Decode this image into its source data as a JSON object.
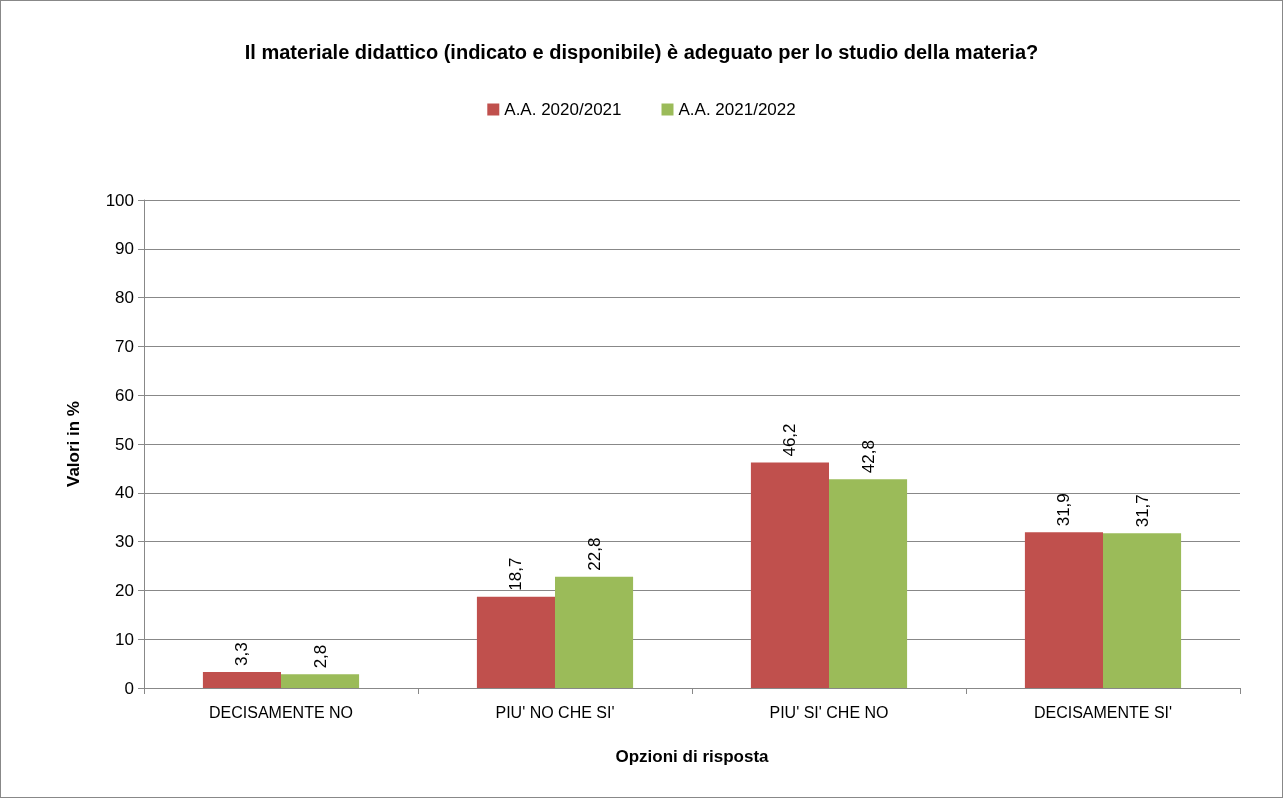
{
  "chart_data": {
    "type": "bar",
    "title": "Il materiale didattico (indicato e disponibile) è adeguato per lo studio della materia?",
    "xlabel": "Opzioni di risposta",
    "ylabel": "Valori in %",
    "categories": [
      "DECISAMENTE NO",
      "PIU' NO CHE SI'",
      "PIU' SI' CHE NO",
      "DECISAMENTE SI'"
    ],
    "series": [
      {
        "name": "A.A. 2020/2021",
        "color": "#c0504d",
        "values": [
          3.3,
          18.7,
          46.2,
          31.9
        ],
        "value_labels": [
          "3,3",
          "18,7",
          "46,2",
          "31,9"
        ]
      },
      {
        "name": "A.A. 2021/2022",
        "color": "#9bbb59",
        "values": [
          2.8,
          22.8,
          42.8,
          31.7
        ],
        "value_labels": [
          "2,8",
          "22,8",
          "42,8",
          "31,7"
        ]
      }
    ],
    "ylim": [
      0,
      100
    ],
    "yticks": [
      0,
      10,
      20,
      30,
      40,
      50,
      60,
      70,
      80,
      90,
      100
    ],
    "grid": "y",
    "legend": "top"
  }
}
